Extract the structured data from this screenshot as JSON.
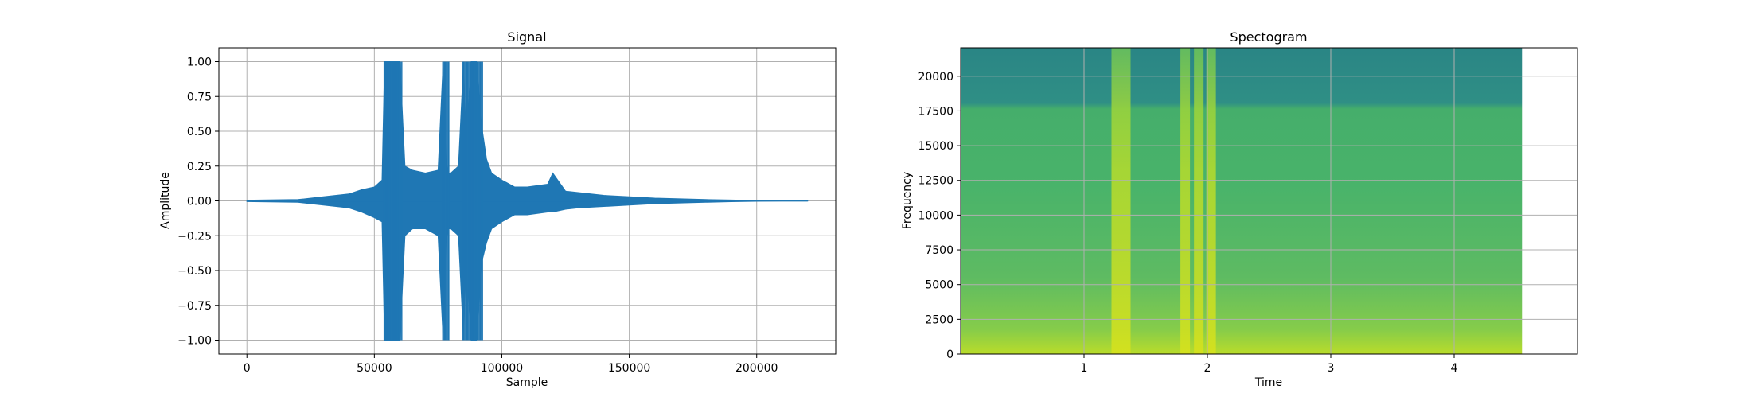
{
  "chart_data": [
    {
      "type": "line",
      "title": "Signal",
      "xlabel": "Sample",
      "ylabel": "Amplitude",
      "xlim": [
        -11000,
        231000
      ],
      "ylim": [
        -1.1,
        1.1
      ],
      "xticks": [
        0,
        50000,
        100000,
        150000,
        200000
      ],
      "xtick_labels": [
        "0",
        "50000",
        "100000",
        "150000",
        "200000"
      ],
      "yticks": [
        -1.0,
        -0.75,
        -0.5,
        -0.25,
        0.0,
        0.25,
        0.5,
        0.75,
        1.0
      ],
      "ytick_labels": [
        "−1.00",
        "−0.75",
        "−0.50",
        "−0.25",
        "0.00",
        "0.25",
        "0.50",
        "0.75",
        "1.00"
      ],
      "grid": true,
      "color": "#1f77b4",
      "envelope": {
        "x": [
          0,
          20000,
          30000,
          40000,
          45000,
          50000,
          53000,
          54000,
          56000,
          58000,
          60000,
          62000,
          65000,
          70000,
          75000,
          77000,
          78000,
          79000,
          80000,
          83000,
          85000,
          86000,
          88000,
          90000,
          92000,
          94000,
          96000,
          100000,
          105000,
          110000,
          118000,
          120000,
          125000,
          130000,
          140000,
          150000,
          160000,
          170000,
          180000,
          190000,
          195000,
          200000,
          210000,
          220000
        ],
        "upper": [
          0.005,
          0.01,
          0.03,
          0.05,
          0.08,
          0.1,
          0.15,
          1.0,
          1.0,
          1.0,
          1.0,
          0.25,
          0.22,
          0.2,
          0.22,
          1.0,
          0.3,
          0.2,
          0.2,
          0.25,
          1.0,
          0.45,
          1.0,
          1.0,
          0.55,
          0.3,
          0.2,
          0.15,
          0.1,
          0.1,
          0.12,
          0.2,
          0.07,
          0.06,
          0.04,
          0.03,
          0.02,
          0.015,
          0.01,
          0.006,
          0.004,
          0.003,
          0.002,
          0.002
        ],
        "lower": [
          -0.005,
          -0.01,
          -0.03,
          -0.05,
          -0.08,
          -0.12,
          -0.15,
          -1.0,
          -1.0,
          -1.0,
          -1.0,
          -0.25,
          -0.2,
          -0.2,
          -0.25,
          -1.0,
          -0.3,
          -0.2,
          -0.2,
          -0.25,
          -1.0,
          -0.45,
          -1.0,
          -1.0,
          -0.45,
          -0.3,
          -0.2,
          -0.15,
          -0.1,
          -0.1,
          -0.08,
          -0.08,
          -0.06,
          -0.05,
          -0.04,
          -0.03,
          -0.02,
          -0.015,
          -0.01,
          -0.006,
          -0.004,
          -0.003,
          -0.002,
          -0.002
        ]
      }
    },
    {
      "type": "heatmap",
      "title": "Spectogram",
      "xlabel": "Time",
      "ylabel": "Frequency",
      "xlim": [
        0.0,
        5.0
      ],
      "ylim": [
        0,
        22050
      ],
      "data_extent_x": [
        0.0,
        4.55
      ],
      "xticks": [
        1,
        2,
        3,
        4
      ],
      "xtick_labels": [
        "1",
        "2",
        "3",
        "4"
      ],
      "yticks": [
        0,
        2500,
        5000,
        7500,
        10000,
        12500,
        15000,
        17500,
        20000
      ],
      "ytick_labels": [
        "0",
        "2500",
        "5000",
        "7500",
        "10000",
        "12500",
        "15000",
        "17500",
        "20000"
      ],
      "grid": true,
      "colormap": "viridis",
      "colors": {
        "low": "#2a8a8a",
        "mid": "#4cb870",
        "high": "#c8e020"
      },
      "bright_bands_time": [
        1.3,
        1.82,
        1.93,
        2.03
      ]
    }
  ]
}
